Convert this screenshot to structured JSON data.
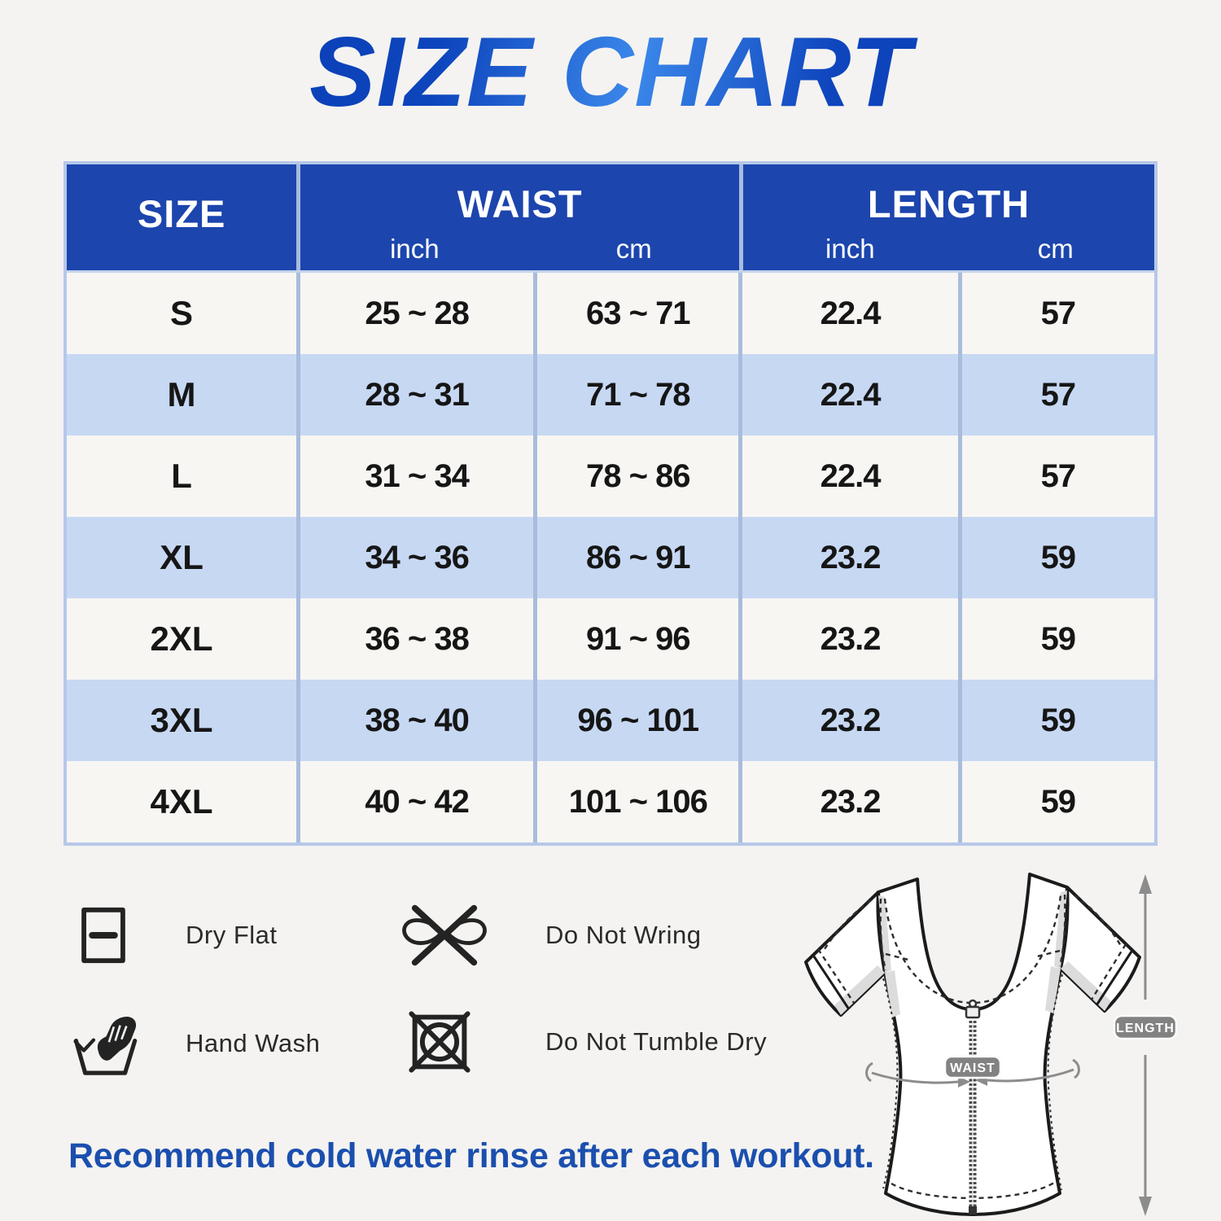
{
  "title": "SIZE CHART",
  "table": {
    "header": {
      "size": "SIZE",
      "waist": "WAIST",
      "length": "LENGTH",
      "unit_inch": "inch",
      "unit_cm": "cm"
    }
  },
  "chart_data": {
    "type": "table",
    "title": "SIZE CHART",
    "columns": [
      "SIZE",
      "WAIST inch",
      "WAIST cm",
      "LENGTH inch",
      "LENGTH cm"
    ],
    "rows": [
      [
        "S",
        "25 ~ 28",
        "63 ~ 71",
        "22.4",
        "57"
      ],
      [
        "M",
        "28 ~ 31",
        "71 ~ 78",
        "22.4",
        "57"
      ],
      [
        "L",
        "31 ~ 34",
        "78 ~ 86",
        "22.4",
        "57"
      ],
      [
        "XL",
        "34 ~ 36",
        "86 ~ 91",
        "23.2",
        "59"
      ],
      [
        "2XL",
        "36 ~ 38",
        "91 ~ 96",
        "23.2",
        "59"
      ],
      [
        "3XL",
        "38 ~ 40",
        "96 ~ 101",
        "23.2",
        "59"
      ],
      [
        "4XL",
        "40 ~ 42",
        "101 ~ 106",
        "23.2",
        "59"
      ]
    ]
  },
  "care": {
    "items": [
      {
        "icon": "dry-flat-icon",
        "label": "Dry Flat"
      },
      {
        "icon": "do-not-wring-icon",
        "label": "Do Not Wring"
      },
      {
        "icon": "hand-wash-icon",
        "label": "Hand Wash"
      },
      {
        "icon": "do-not-tumble-dry-icon",
        "label": "Do Not Tumble Dry"
      }
    ]
  },
  "garment": {
    "waist_label": "WAIST",
    "length_label": "LENGTH"
  },
  "note": "Recommend cold water rinse after each workout.",
  "colors": {
    "header_blue": "#1c45ad",
    "row_blue": "#c7d8f3",
    "row_light": "#f7f6f3",
    "divider": "#a9bcdc",
    "accent_blue": "#1b4fae",
    "pill_gray": "#828282"
  }
}
